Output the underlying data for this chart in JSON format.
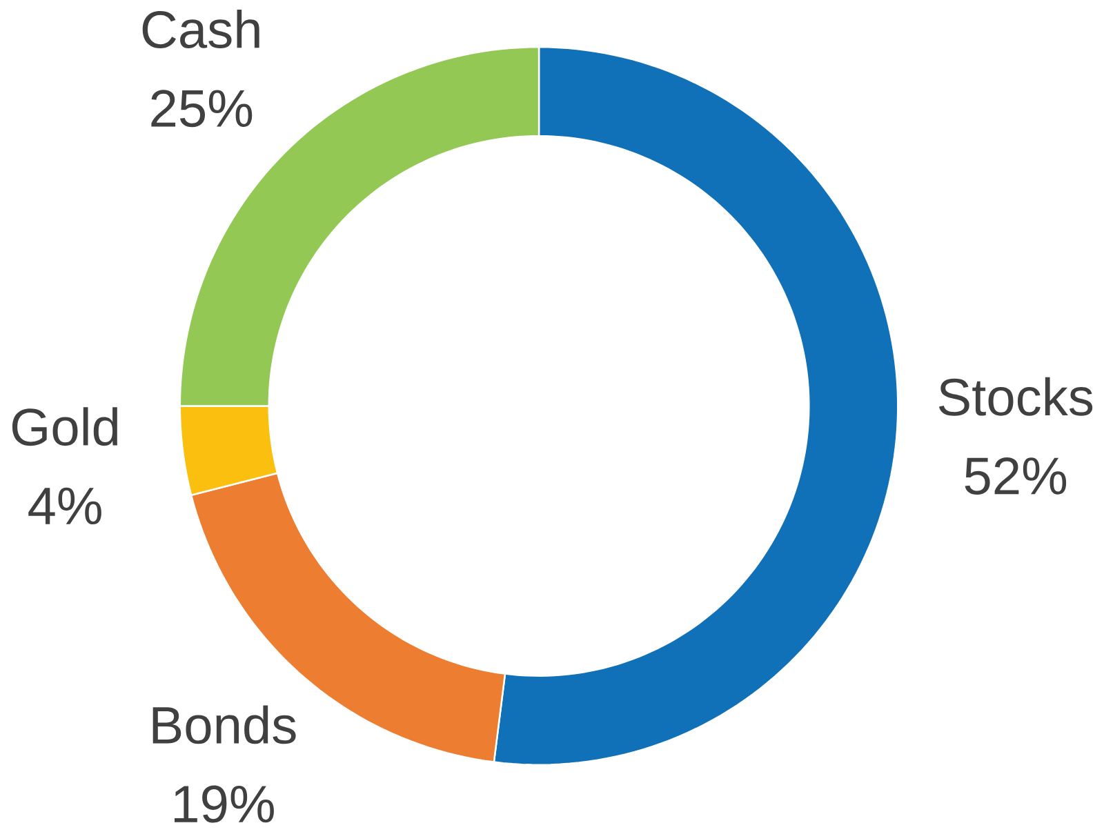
{
  "chart_data": {
    "type": "donut",
    "categories": [
      "Stocks",
      "Bonds",
      "Gold",
      "Cash"
    ],
    "values": [
      52,
      19,
      4,
      25
    ],
    "value_labels": [
      "52%",
      "19%",
      "4%",
      "25%"
    ],
    "colors": [
      "#1070b8",
      "#ed7d31",
      "#fbbf10",
      "#92c853"
    ]
  }
}
